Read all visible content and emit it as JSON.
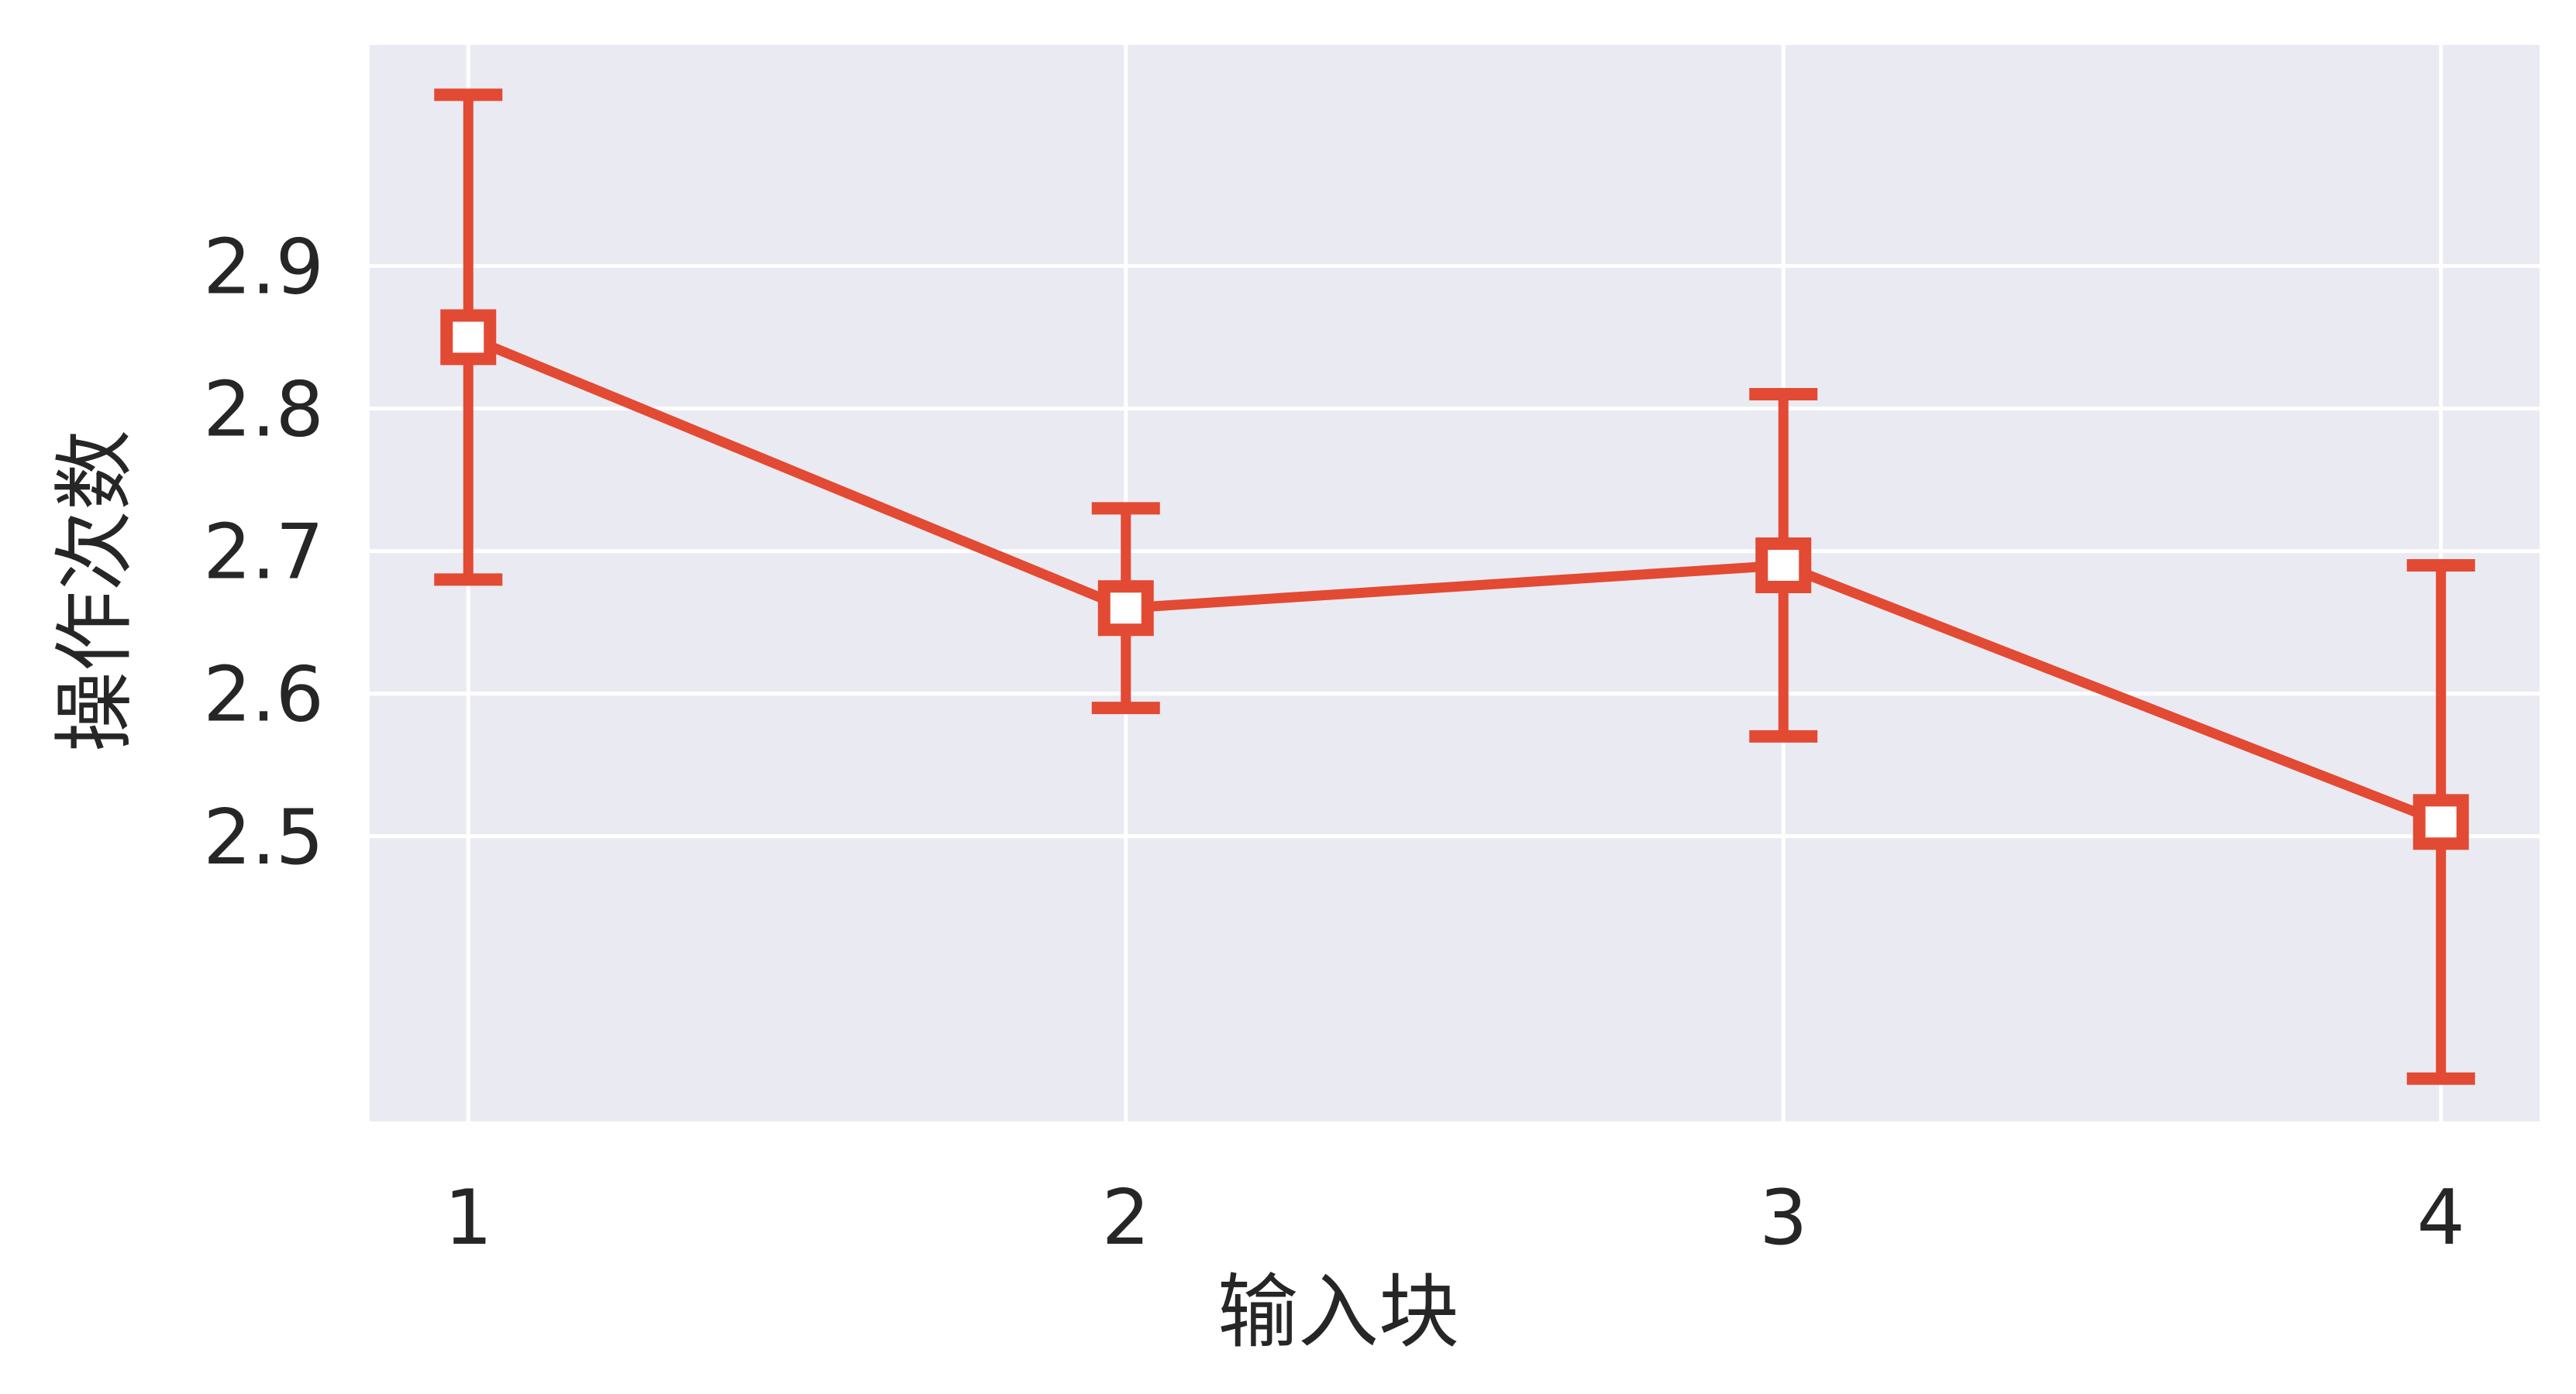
{
  "chart_data": {
    "type": "line",
    "title": "",
    "xlabel": "输入块",
    "ylabel": "操作次数",
    "categories": [
      "1",
      "2",
      "3",
      "4"
    ],
    "x": [
      1,
      2,
      3,
      4
    ],
    "xlim": [
      0.85,
      4.15
    ],
    "ylim": [
      2.3,
      3.055
    ],
    "yticks": [
      "2.5",
      "2.6",
      "2.7",
      "2.8",
      "2.9"
    ],
    "grid": true,
    "legend": "none",
    "series": [
      {
        "values": [
          2.85,
          2.66,
          2.69,
          2.51
        ],
        "error_low": [
          2.68,
          2.59,
          2.57,
          2.33
        ],
        "error_high": [
          3.02,
          2.73,
          2.81,
          2.69
        ],
        "marker": "square-hollow"
      }
    ],
    "colors": {
      "line": "#e24a33",
      "plot_background": "#eaeaf2",
      "grid": "#ffffff",
      "marker_fill": "#ffffff"
    }
  }
}
